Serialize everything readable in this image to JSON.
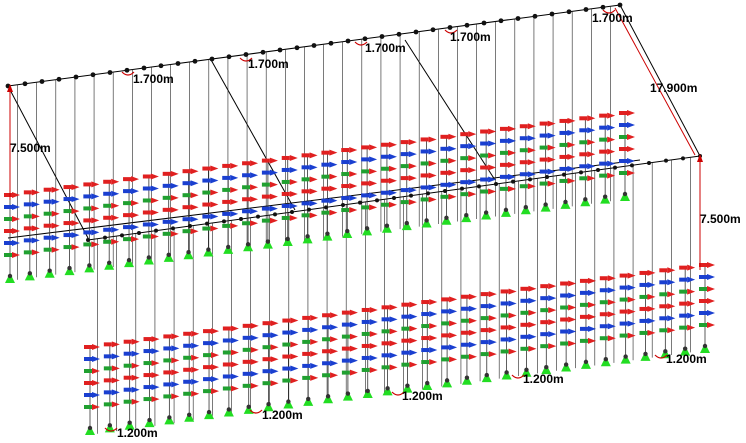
{
  "colors": {
    "background": "#ffffff",
    "structure_line": "#000000",
    "bracket_line": "#222222",
    "dimension_line": "#cc0000",
    "dimension_text": "#000000",
    "node": "#111111",
    "arm_red": "#e02020",
    "arm_blue": "#1a3fd0",
    "arm_green": "#20a030",
    "base_green": "#22dd22",
    "support_dark": "#333333"
  },
  "icons": {
    "arm_red": "red-arm-marker-icon",
    "arm_blue": "blue-arm-marker-icon",
    "arm_green": "green-arm-marker-icon",
    "support": "green-support-base-icon"
  },
  "dimensions": {
    "spacing_top_1": "1.700m",
    "spacing_top_2": "1.700m",
    "spacing_top_3": "1.700m",
    "spacing_top_4": "1.700m",
    "spacing_top_5": "1.700m",
    "height_left": "7.500m",
    "height_right": "7.500m",
    "depth_right": "17.900m",
    "spacing_bottom_1": "1.200m",
    "spacing_bottom_2": "1.200m",
    "spacing_bottom_3": "1.200m",
    "spacing_bottom_4": "1.200m"
  }
}
